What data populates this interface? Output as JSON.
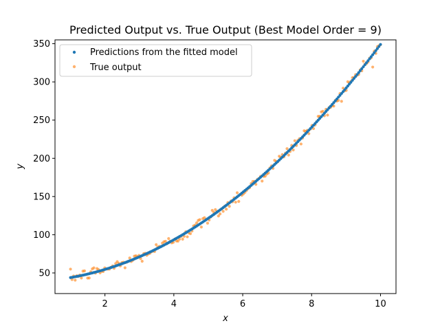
{
  "chart_data": {
    "type": "scatter",
    "title": "Predicted Output vs. True Output (Best Model Order = 9)",
    "xlabel": "x",
    "ylabel": "y",
    "xlim": [
      0.55,
      10.45
    ],
    "ylim": [
      23,
      355
    ],
    "xticks": [
      2,
      4,
      6,
      8,
      10
    ],
    "yticks": [
      50,
      100,
      150,
      200,
      250,
      300,
      350
    ],
    "grid": false,
    "legend_position": "top-left",
    "series": [
      {
        "name": "Predictions from the fitted model",
        "color": "#1f77b4",
        "marker_alpha": 1.0,
        "curve": {
          "x_start": 1.0,
          "x_end": 10.0,
          "count": 200,
          "coefficients": [
            39.0,
            2.0,
            2.9
          ]
        }
      },
      {
        "name": "True output",
        "color": "#ff7f0e",
        "marker_alpha": 0.6,
        "curve": {
          "x_start": 1.0,
          "x_end": 10.0,
          "count": 200,
          "coefficients": [
            39.0,
            2.0,
            2.9
          ]
        },
        "noise_sd": 4.0
      }
    ]
  }
}
